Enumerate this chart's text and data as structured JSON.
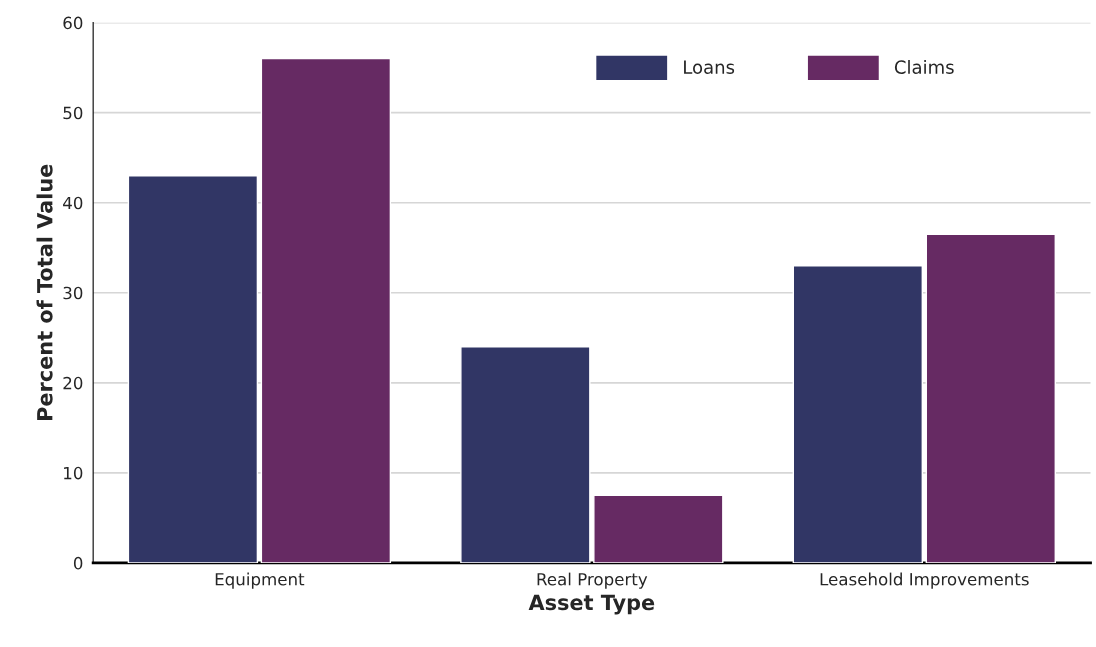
{
  "chart_data": {
    "type": "bar",
    "xlabel": "Asset Type",
    "ylabel": "Percent of Total Value",
    "categories": [
      "Equipment",
      "Real Property",
      "Leasehold Improvements"
    ],
    "series": [
      {
        "name": "Loans",
        "color": "#313665",
        "values": [
          43,
          24,
          33
        ]
      },
      {
        "name": "Claims",
        "color": "#662a63",
        "values": [
          56,
          7.5,
          36.5
        ]
      }
    ],
    "ylim": [
      0,
      60
    ],
    "yticks": [
      0,
      10,
      20,
      30,
      40,
      50,
      60
    ],
    "grid": "y",
    "legend": "top right"
  }
}
